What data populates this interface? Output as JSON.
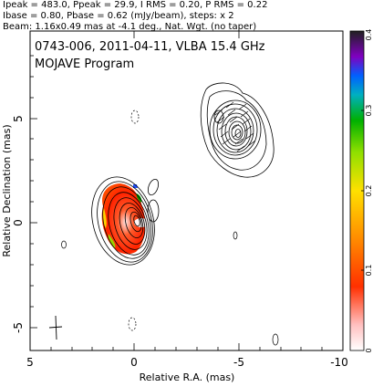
{
  "header": {
    "line1": "Ipeak = 483.0, Ppeak = 29.9, I RMS = 0.20, P RMS = 0.22",
    "line2": "Ibase = 0.80, Pbase = 0.62 (mJy/beam), steps: x 2",
    "line3": "Beam: 1.16x0.49 mas at -4.1 deg., Nat. Wgt. (no taper)"
  },
  "chart_data": {
    "type": "contour",
    "title": "0743-006, 2011-04-11, VLBA 15.4 GHz",
    "subtitle": "MOJAVE Program",
    "xlabel": "Relative R.A. (mas)",
    "ylabel": "Relative Declination (mas)",
    "xlim": [
      5,
      -10
    ],
    "ylim": [
      -6.5,
      9.2
    ],
    "xticks": [
      "5",
      "0",
      "-5",
      "-10"
    ],
    "yticks": [
      "-5",
      "0",
      "5"
    ],
    "colorbar": {
      "range": [
        0,
        0.4
      ],
      "ticks": [
        "0",
        "0.1",
        "0.2",
        "0.3",
        "0.4"
      ]
    },
    "components": [
      {
        "name": "core",
        "x": 0.3,
        "y": 0.1,
        "peak_mJy_per_beam": 483.0
      },
      {
        "name": "jet",
        "x": -4.6,
        "y": 4.3
      }
    ],
    "contours": {
      "base_mJy_per_beam": 0.8,
      "step_factor": 2
    },
    "beam": {
      "major_mas": 1.16,
      "minor_mas": 0.49,
      "pa_deg": -4.1
    }
  }
}
